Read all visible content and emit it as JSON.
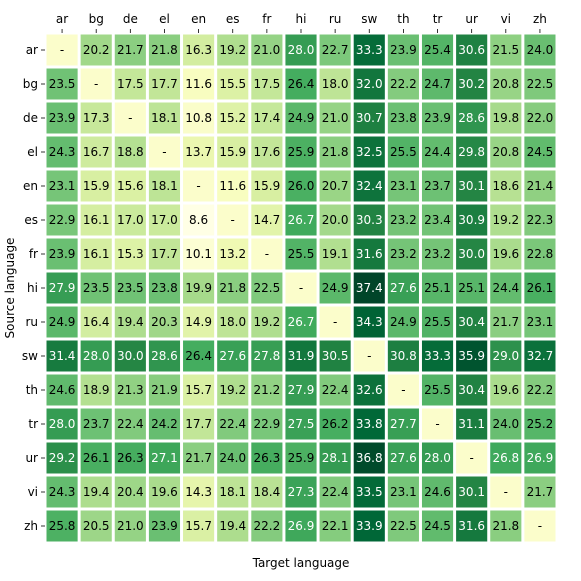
{
  "chart_data": {
    "type": "heatmap",
    "xlabel": "Target language",
    "ylabel": "Source language",
    "x_categories": [
      "ar",
      "bg",
      "de",
      "el",
      "en",
      "es",
      "fr",
      "hi",
      "ru",
      "sw",
      "th",
      "tr",
      "ur",
      "vi",
      "zh"
    ],
    "y_categories": [
      "ar",
      "bg",
      "de",
      "el",
      "en",
      "es",
      "fr",
      "hi",
      "ru",
      "sw",
      "th",
      "tr",
      "ur",
      "vi",
      "zh"
    ],
    "missing_label": "-",
    "colormap": [
      "#ffffe5",
      "#f7fcb9",
      "#d9f0a3",
      "#addd8e",
      "#78c679",
      "#41ab5d",
      "#238443",
      "#006837",
      "#004529"
    ],
    "value_range": [
      8.6,
      37.4
    ],
    "values": [
      [
        null,
        20.2,
        21.7,
        21.8,
        16.3,
        19.2,
        21.0,
        28.0,
        22.7,
        33.3,
        23.9,
        25.4,
        30.6,
        21.5,
        24.0
      ],
      [
        23.5,
        null,
        17.5,
        17.7,
        11.6,
        15.5,
        17.5,
        26.4,
        18.0,
        32.0,
        22.2,
        24.7,
        30.2,
        20.8,
        22.5
      ],
      [
        23.9,
        17.3,
        null,
        18.1,
        10.8,
        15.2,
        17.4,
        24.9,
        21.0,
        30.7,
        23.8,
        23.9,
        28.6,
        19.8,
        22.0
      ],
      [
        24.3,
        16.7,
        18.8,
        null,
        13.7,
        15.9,
        17.6,
        25.9,
        21.8,
        32.5,
        25.5,
        24.4,
        29.8,
        20.8,
        24.5
      ],
      [
        23.1,
        15.9,
        15.6,
        18.1,
        null,
        11.6,
        15.9,
        26.0,
        20.7,
        32.4,
        23.1,
        23.7,
        30.1,
        18.6,
        21.4
      ],
      [
        22.9,
        16.1,
        17.0,
        17.0,
        8.6,
        null,
        14.7,
        26.7,
        20.0,
        30.3,
        23.2,
        23.4,
        30.9,
        19.2,
        22.3
      ],
      [
        23.9,
        16.1,
        15.3,
        17.7,
        10.1,
        13.2,
        null,
        25.5,
        19.1,
        31.6,
        23.2,
        23.2,
        30.0,
        19.6,
        22.8
      ],
      [
        27.9,
        23.5,
        23.5,
        23.8,
        19.9,
        21.8,
        22.5,
        null,
        24.9,
        37.4,
        27.6,
        25.1,
        25.1,
        24.4,
        26.1
      ],
      [
        24.9,
        16.4,
        19.4,
        20.3,
        14.9,
        18.0,
        19.2,
        26.7,
        null,
        34.3,
        24.9,
        25.5,
        30.4,
        21.7,
        23.1
      ],
      [
        31.4,
        28.0,
        30.0,
        28.6,
        26.4,
        27.6,
        27.8,
        31.9,
        30.5,
        null,
        30.8,
        33.3,
        35.9,
        29.0,
        32.7
      ],
      [
        24.6,
        18.9,
        21.3,
        21.9,
        15.7,
        19.2,
        21.2,
        27.9,
        22.4,
        32.6,
        null,
        25.5,
        30.4,
        19.6,
        22.2
      ],
      [
        28.0,
        23.7,
        22.4,
        24.2,
        17.7,
        22.4,
        22.9,
        27.5,
        26.2,
        33.8,
        27.7,
        null,
        31.1,
        24.0,
        25.2
      ],
      [
        29.2,
        26.1,
        26.3,
        27.1,
        21.7,
        24.0,
        26.3,
        25.9,
        28.1,
        36.8,
        27.6,
        28.0,
        null,
        26.8,
        26.9
      ],
      [
        24.3,
        19.4,
        20.4,
        19.6,
        14.3,
        18.1,
        18.4,
        27.3,
        22.4,
        33.5,
        23.1,
        24.6,
        30.1,
        null,
        21.7
      ],
      [
        25.8,
        20.5,
        21.0,
        23.9,
        15.7,
        19.4,
        22.2,
        26.9,
        22.1,
        33.9,
        22.5,
        24.5,
        31.6,
        21.8,
        null
      ]
    ]
  }
}
